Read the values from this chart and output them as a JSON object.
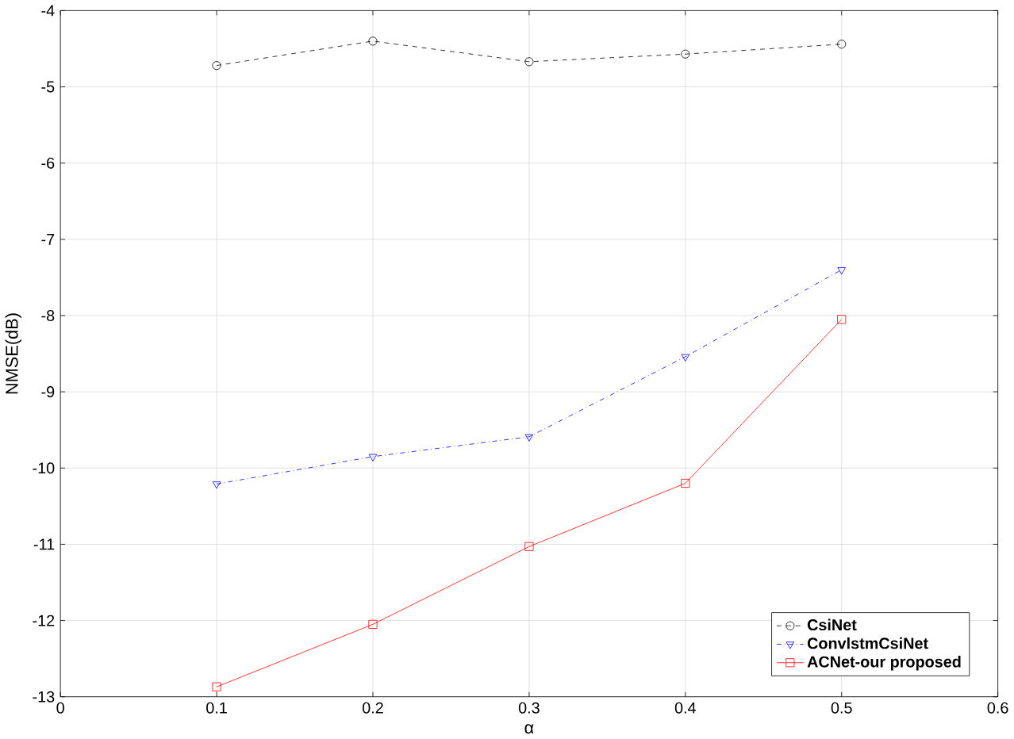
{
  "chart_data": {
    "type": "line",
    "xlabel": "α",
    "ylabel": "NMSE(dB)",
    "x": [
      0.1,
      0.2,
      0.3,
      0.4,
      0.5
    ],
    "xlim": [
      0,
      0.6
    ],
    "xticks": [
      0,
      0.1,
      0.2,
      0.3,
      0.4,
      0.5,
      0.6
    ],
    "ylim": [
      -13,
      -4
    ],
    "yticks": [
      -13,
      -12,
      -11,
      -10,
      -9,
      -8,
      -7,
      -6,
      -5,
      -4
    ],
    "grid": true,
    "legend": "bottom right",
    "series": [
      {
        "name": "CsiNet",
        "color": "#000000",
        "marker": "circle",
        "line_style": "dashed",
        "values": [
          -4.72,
          -4.4,
          -4.67,
          -4.57,
          -4.44
        ]
      },
      {
        "name": "ConvlstmCsiNet",
        "color": "#0000ff",
        "marker": "triangle",
        "line_style": "dashdot",
        "values": [
          -10.21,
          -9.85,
          -9.59,
          -8.54,
          -7.4
        ]
      },
      {
        "name": "ACNet-our proposed",
        "color": "#ff0000",
        "marker": "square",
        "line_style": "solid",
        "values": [
          -12.87,
          -12.05,
          -11.03,
          -10.2,
          -8.05
        ]
      }
    ]
  }
}
